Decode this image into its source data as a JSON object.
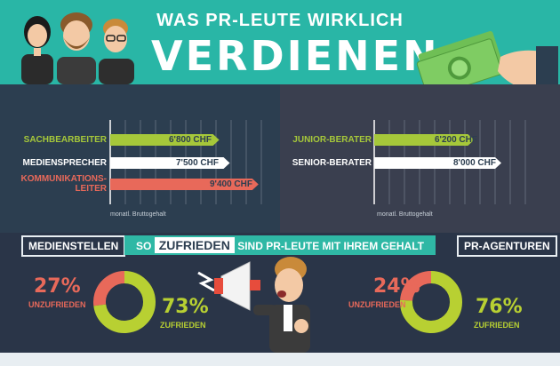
{
  "header": {
    "title_top": "WAS PR-LEUTE WIRKLICH",
    "title_main": "VERDIENEN"
  },
  "chart_data": [
    {
      "type": "bar",
      "orientation": "horizontal",
      "categories": [
        "SACHBEARBEITER",
        "MEDIENSPRECHER",
        "KOMMUNIKATIONS-LEITER"
      ],
      "values": [
        6800,
        7500,
        9400
      ],
      "value_labels": [
        "6'800 CHF",
        "7'500 CHF",
        "9'400 CHF"
      ],
      "colors": [
        "#a6c83a",
        "#ffffff",
        "#e8695a"
      ],
      "axis_note": "monatl. Bruttogehalt",
      "xlim": [
        0,
        10000
      ]
    },
    {
      "type": "bar",
      "orientation": "horizontal",
      "categories": [
        "JUNIOR-BERATER",
        "SENIOR-BERATER"
      ],
      "values": [
        6200,
        8000
      ],
      "value_labels": [
        "6'200 CHF",
        "8'000 CHF"
      ],
      "colors": [
        "#a6c83a",
        "#ffffff"
      ],
      "axis_note": "monatl. Bruttogehalt",
      "xlim": [
        0,
        10000
      ]
    },
    {
      "type": "pie",
      "title": "MEDIENSTELLEN",
      "categories": [
        "UNZUFRIEDEN",
        "ZUFRIEDEN"
      ],
      "values": [
        27,
        73
      ],
      "labels": [
        "27%",
        "73%"
      ],
      "colors": [
        "#e8695a",
        "#b8d032"
      ]
    },
    {
      "type": "pie",
      "title": "PR-AGENTUREN",
      "categories": [
        "UNZUFRIEDEN",
        "ZUFRIEDEN"
      ],
      "values": [
        24,
        76
      ],
      "labels": [
        "24%",
        "76%"
      ],
      "colors": [
        "#e8695a",
        "#b8d032"
      ]
    }
  ],
  "banner": {
    "so": "SO",
    "highlight": "ZUFRIEDEN",
    "rest": "SIND PR-LEUTE MIT IHREM GEHALT"
  },
  "colors": {
    "teal": "#29b6a6",
    "green": "#a6c83a",
    "red": "#e8695a",
    "navy": "#2c3e50"
  }
}
